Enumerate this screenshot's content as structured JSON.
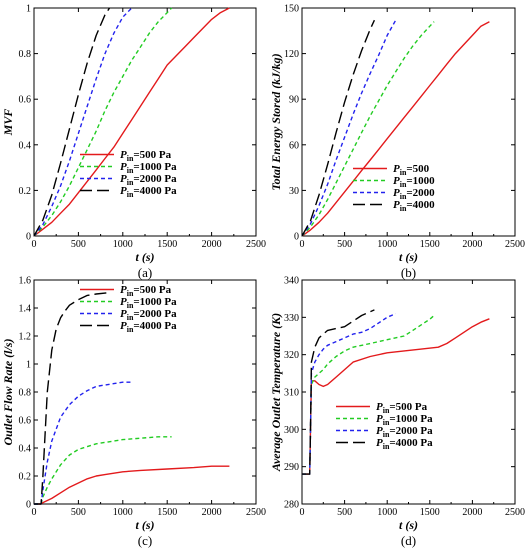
{
  "panels": [
    {
      "id": "a",
      "panel_label": "(a)",
      "xlabel": "t (s)",
      "ylabel": "MVF",
      "x_ticks": [
        "0",
        "500",
        "1000",
        "1500",
        "2000",
        "2500"
      ],
      "y_ticks": [
        "0",
        "0.2",
        "0.4",
        "0.6",
        "0.8",
        "1"
      ],
      "legend": [
        {
          "label_base": "P",
          "label_sub": "in",
          "label_rest": "=500 Pa"
        },
        {
          "label_base": "P",
          "label_sub": "in",
          "label_rest": "=1000 Pa"
        },
        {
          "label_base": "P",
          "label_sub": "in",
          "label_rest": "=2000 Pa"
        },
        {
          "label_base": "P",
          "label_sub": "in",
          "label_rest": "=4000 Pa"
        }
      ]
    },
    {
      "id": "b",
      "panel_label": "(b)",
      "xlabel": "t (s)",
      "ylabel": "Total Energy Stored (kJ/kg)",
      "x_ticks": [
        "0",
        "500",
        "1000",
        "1500",
        "2000",
        "2500"
      ],
      "y_ticks": [
        "0",
        "30",
        "60",
        "90",
        "120",
        "150"
      ],
      "legend": [
        {
          "label_base": "P",
          "label_sub": "in",
          "label_rest": "=500"
        },
        {
          "label_base": "P",
          "label_sub": "in",
          "label_rest": "=1000"
        },
        {
          "label_base": "P",
          "label_sub": "in",
          "label_rest": "=2000"
        },
        {
          "label_base": "P",
          "label_sub": "in",
          "label_rest": "=4000"
        }
      ]
    },
    {
      "id": "c",
      "panel_label": "(c)",
      "xlabel": "t (s)",
      "ylabel": "Outlet Flow Rate (l/s)",
      "x_ticks": [
        "0",
        "500",
        "1000",
        "1500",
        "2000",
        "2500"
      ],
      "y_ticks": [
        "0",
        "0.2",
        "0.4",
        "0.6",
        "0.8",
        "1",
        "1.2",
        "1.4",
        "1.6"
      ],
      "legend": [
        {
          "label_base": "P",
          "label_sub": "in",
          "label_rest": "=500 Pa"
        },
        {
          "label_base": "P",
          "label_sub": "in",
          "label_rest": "=1000 Pa"
        },
        {
          "label_base": "P",
          "label_sub": "in",
          "label_rest": "=2000 Pa"
        },
        {
          "label_base": "P",
          "label_sub": "in",
          "label_rest": "=4000 Pa"
        }
      ]
    },
    {
      "id": "d",
      "panel_label": "(d)",
      "xlabel": "t (s)",
      "ylabel": "Average Outlet Temperature (K)",
      "x_ticks": [
        "0",
        "500",
        "1000",
        "1500",
        "2000",
        "2500"
      ],
      "y_ticks": [
        "280",
        "290",
        "300",
        "310",
        "320",
        "330",
        "340"
      ],
      "legend": [
        {
          "label_base": "P",
          "label_sub": "in",
          "label_rest": "=500 Pa"
        },
        {
          "label_base": "P",
          "label_sub": "in",
          "label_rest": "=1000 Pa"
        },
        {
          "label_base": "P",
          "label_sub": "in",
          "label_rest": "=2000 Pa"
        },
        {
          "label_base": "P",
          "label_sub": "in",
          "label_rest": "=4000 Pa"
        }
      ]
    }
  ],
  "series_styles": [
    {
      "color": "#e31a1c",
      "dash": "none"
    },
    {
      "color": "#22cc22",
      "dash": "4,3"
    },
    {
      "color": "#2222ee",
      "dash": "4,3"
    },
    {
      "color": "#000000",
      "dash": "12,5"
    }
  ],
  "chart_data": [
    {
      "type": "line",
      "xlim": [
        0,
        2500
      ],
      "ylim": [
        0,
        1
      ],
      "grid": false,
      "legend_position": "lower-right",
      "series": [
        {
          "name": "Pin=500 Pa",
          "x": [
            0,
            100,
            200,
            300,
            400,
            500,
            600,
            700,
            800,
            900,
            1000,
            1100,
            1200,
            1300,
            1400,
            1500,
            1600,
            1700,
            1800,
            1900,
            2000,
            2100,
            2200
          ],
          "y": [
            0,
            0.03,
            0.06,
            0.1,
            0.14,
            0.19,
            0.24,
            0.29,
            0.34,
            0.39,
            0.45,
            0.51,
            0.57,
            0.63,
            0.69,
            0.75,
            0.79,
            0.83,
            0.87,
            0.91,
            0.95,
            0.98,
            1.0
          ]
        },
        {
          "name": "Pin=1000 Pa",
          "x": [
            0,
            100,
            200,
            300,
            400,
            500,
            600,
            700,
            800,
            900,
            1000,
            1100,
            1200,
            1300,
            1400,
            1500,
            1550
          ],
          "y": [
            0,
            0.04,
            0.09,
            0.15,
            0.22,
            0.3,
            0.38,
            0.46,
            0.55,
            0.63,
            0.7,
            0.77,
            0.83,
            0.89,
            0.94,
            0.98,
            1.0
          ]
        },
        {
          "name": "Pin=2000 Pa",
          "x": [
            0,
            100,
            200,
            300,
            400,
            500,
            600,
            700,
            800,
            900,
            1000,
            1100
          ],
          "y": [
            0,
            0.05,
            0.13,
            0.22,
            0.33,
            0.45,
            0.57,
            0.69,
            0.8,
            0.89,
            0.96,
            1.0
          ]
        },
        {
          "name": "Pin=4000 Pa",
          "x": [
            0,
            100,
            200,
            300,
            400,
            500,
            600,
            700,
            800,
            850
          ],
          "y": [
            0,
            0.07,
            0.18,
            0.32,
            0.47,
            0.62,
            0.76,
            0.88,
            0.97,
            1.0
          ]
        }
      ]
    },
    {
      "type": "line",
      "xlim": [
        0,
        2500
      ],
      "ylim": [
        0,
        150
      ],
      "grid": false,
      "legend_position": "lower-right",
      "series": [
        {
          "name": "Pin=500",
          "x": [
            0,
            100,
            200,
            300,
            400,
            500,
            600,
            700,
            800,
            900,
            1000,
            1100,
            1200,
            1300,
            1400,
            1500,
            1600,
            1700,
            1800,
            1900,
            2000,
            2100,
            2200
          ],
          "y": [
            0,
            4,
            9,
            15,
            22,
            29,
            36,
            43,
            50,
            57,
            64,
            71,
            78,
            85,
            92,
            99,
            106,
            113,
            120,
            126,
            132,
            138,
            141
          ]
        },
        {
          "name": "Pin=1000",
          "x": [
            0,
            100,
            200,
            300,
            400,
            500,
            600,
            700,
            800,
            900,
            1000,
            1100,
            1200,
            1300,
            1400,
            1500,
            1550
          ],
          "y": [
            0,
            6,
            14,
            24,
            35,
            46,
            57,
            68,
            79,
            89,
            99,
            108,
            117,
            125,
            132,
            138,
            141
          ]
        },
        {
          "name": "Pin=2000",
          "x": [
            0,
            100,
            200,
            300,
            400,
            500,
            600,
            700,
            800,
            900,
            1000,
            1100
          ],
          "y": [
            0,
            8,
            20,
            34,
            50,
            65,
            80,
            94,
            107,
            119,
            132,
            142
          ]
        },
        {
          "name": "Pin=4000",
          "x": [
            0,
            100,
            200,
            300,
            400,
            500,
            600,
            700,
            800,
            850
          ],
          "y": [
            0,
            10,
            27,
            47,
            68,
            88,
            106,
            122,
            136,
            142
          ]
        }
      ]
    },
    {
      "type": "line",
      "xlim": [
        0,
        2500
      ],
      "ylim": [
        0,
        1.6
      ],
      "grid": false,
      "legend_position": "upper-right",
      "series": [
        {
          "name": "Pin=500 Pa",
          "x": [
            0,
            80,
            100,
            200,
            300,
            400,
            500,
            600,
            700,
            800,
            1000,
            1200,
            1500,
            1800,
            2000,
            2200
          ],
          "y": [
            0,
            0,
            0.01,
            0.04,
            0.08,
            0.12,
            0.15,
            0.18,
            0.2,
            0.21,
            0.23,
            0.24,
            0.25,
            0.26,
            0.27,
            0.27
          ]
        },
        {
          "name": "Pin=1000 Pa",
          "x": [
            0,
            80,
            100,
            150,
            200,
            300,
            400,
            500,
            600,
            700,
            800,
            1000,
            1200,
            1400,
            1550
          ],
          "y": [
            0,
            0,
            0.05,
            0.12,
            0.18,
            0.28,
            0.35,
            0.39,
            0.41,
            0.43,
            0.44,
            0.46,
            0.47,
            0.48,
            0.48
          ]
        },
        {
          "name": "Pin=2000 Pa",
          "x": [
            0,
            80,
            100,
            150,
            200,
            300,
            400,
            500,
            600,
            700,
            800,
            900,
            1000,
            1100
          ],
          "y": [
            0,
            0,
            0.1,
            0.3,
            0.45,
            0.62,
            0.71,
            0.77,
            0.81,
            0.84,
            0.85,
            0.86,
            0.87,
            0.87
          ]
        },
        {
          "name": "Pin=4000 Pa",
          "x": [
            0,
            80,
            100,
            150,
            200,
            250,
            300,
            350,
            400,
            500,
            600,
            700,
            850
          ],
          "y": [
            0,
            0,
            0.2,
            0.8,
            1.1,
            1.25,
            1.33,
            1.38,
            1.42,
            1.46,
            1.49,
            1.5,
            1.51
          ]
        }
      ]
    },
    {
      "type": "line",
      "xlim": [
        0,
        2500
      ],
      "ylim": [
        280,
        340
      ],
      "grid": false,
      "legend_position": "lower-right",
      "series": [
        {
          "name": "Pin=500 Pa",
          "x": [
            0,
            90,
            100,
            110,
            150,
            200,
            250,
            300,
            400,
            500,
            600,
            800,
            1000,
            1200,
            1400,
            1600,
            1700,
            1800,
            1900,
            2000,
            2100,
            2200
          ],
          "y": [
            288,
            288,
            300,
            313,
            313,
            312,
            311.5,
            312,
            314,
            316,
            318,
            319.5,
            320.5,
            321,
            321.5,
            322,
            323,
            324.5,
            326,
            327.5,
            328.7,
            329.6
          ]
        },
        {
          "name": "Pin=1000 Pa",
          "x": [
            0,
            90,
            100,
            110,
            150,
            200,
            250,
            300,
            400,
            500,
            600,
            800,
            1000,
            1200,
            1300,
            1400,
            1500,
            1550
          ],
          "y": [
            288,
            288,
            300,
            312,
            314,
            315,
            316,
            317.5,
            319.5,
            321,
            322,
            323,
            324,
            325,
            326.5,
            328,
            329.5,
            330.5
          ]
        },
        {
          "name": "Pin=2000 Pa",
          "x": [
            0,
            90,
            100,
            110,
            150,
            200,
            250,
            300,
            400,
            500,
            600,
            700,
            800,
            900,
            1000,
            1100
          ],
          "y": [
            288,
            288,
            300,
            315,
            318,
            320,
            321.5,
            322.5,
            323.5,
            324.5,
            325.5,
            326,
            327,
            328.5,
            330,
            331
          ]
        },
        {
          "name": "Pin=4000 Pa",
          "x": [
            0,
            90,
            100,
            110,
            150,
            200,
            250,
            300,
            400,
            500,
            600,
            700,
            800,
            850
          ],
          "y": [
            288,
            288,
            300,
            318,
            322,
            324.5,
            325.5,
            326.5,
            327,
            327.5,
            329,
            330.5,
            331.5,
            332
          ]
        }
      ]
    }
  ]
}
